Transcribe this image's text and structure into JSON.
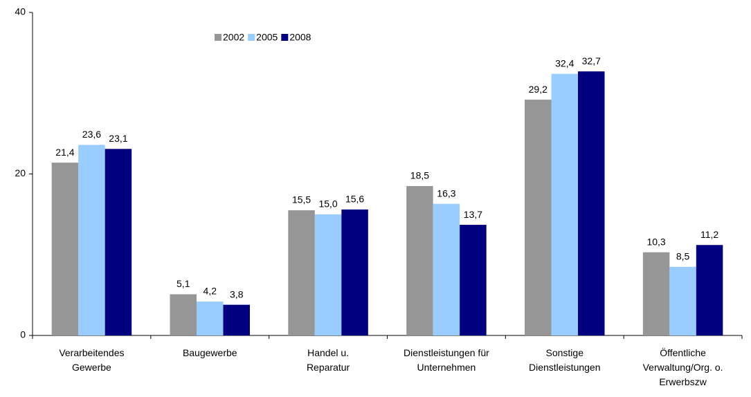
{
  "chart_data": {
    "type": "bar",
    "categories": [
      "Verarbeitendes\nGewerbe",
      "Baugewerbe",
      "Handel u.\nReparatur",
      "Dienstleistungen für\nUnternehmen",
      "Sonstige\nDienstleistungen",
      "Öffentliche\nVerwaltung/Org. o.\nErwerbszw"
    ],
    "series": [
      {
        "name": "2002",
        "color": "#969696",
        "values": [
          21.4,
          5.1,
          15.5,
          18.5,
          29.2,
          10.3
        ],
        "value_labels": [
          "21,4",
          "5,1",
          "15,5",
          "18,5",
          "29,2",
          "10,3"
        ]
      },
      {
        "name": "2005",
        "color": "#99ccff",
        "values": [
          23.6,
          4.2,
          15.0,
          16.3,
          32.4,
          8.5
        ],
        "value_labels": [
          "23,6",
          "4,2",
          "15,0",
          "16,3",
          "32,4",
          "8,5"
        ]
      },
      {
        "name": "2008",
        "color": "#000080",
        "values": [
          23.1,
          3.8,
          15.6,
          13.7,
          32.7,
          11.2
        ],
        "value_labels": [
          "23,1",
          "3,8",
          "15,6",
          "13,7",
          "32,7",
          "11,2"
        ]
      }
    ],
    "ylim": [
      0,
      40
    ],
    "yticks": [
      0,
      20,
      40
    ],
    "grid": false,
    "legend": "top"
  }
}
